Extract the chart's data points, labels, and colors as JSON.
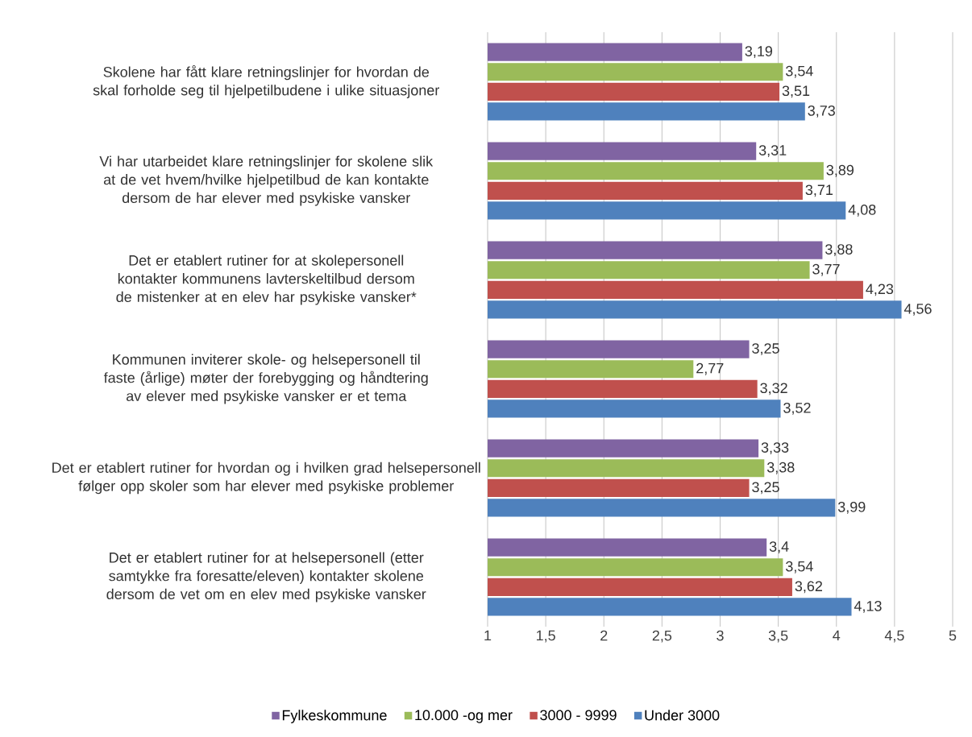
{
  "chart_data": {
    "type": "bar",
    "orientation": "horizontal",
    "categories": [
      "Skolene har fått klare retningslinjer for hvordan de skal forholde seg til hjelpetilbudene i ulike situasjoner",
      "Vi har utarbeidet klare retningslinjer for skolene slik at de vet hvem/hvilke hjelpetilbud de kan kontakte dersom de har elever med psykiske vansker",
      "Det er etablert rutiner for at skolepersonell kontakter kommunens lavterskeltilbud dersom de mistenker at en elev har psykiske vansker*",
      "Kommunen inviterer skole- og helsepersonell til faste (årlige) møter der forebygging og håndtering av elever med psykiske vansker er et tema",
      "Det er etablert rutiner for hvordan og i hvilken grad helsepersonell følger opp skoler som har elever med psykiske problemer",
      "Det er etablert rutiner for at helsepersonell (etter samtykke fra foresatte/eleven) kontakter skolene dersom de vet om en elev med psykiske vansker"
    ],
    "series": [
      {
        "name": "Fylkeskommune",
        "color": "#8064a2",
        "values": [
          3.19,
          3.31,
          3.88,
          3.25,
          3.33,
          3.4
        ],
        "value_labels": [
          "3,19",
          "3,31",
          "3,88",
          "3,25",
          "3,33",
          "3,4"
        ]
      },
      {
        "name": "10.000 -og mer",
        "color": "#9bbb59",
        "values": [
          3.54,
          3.89,
          3.77,
          2.77,
          3.38,
          3.54
        ],
        "value_labels": [
          "3,54",
          "3,89",
          "3,77",
          "2,77",
          "3,38",
          "3,54"
        ]
      },
      {
        "name": "3000 - 9999",
        "color": "#c0504d",
        "values": [
          3.51,
          3.71,
          4.23,
          3.32,
          3.25,
          3.62
        ],
        "value_labels": [
          "3,51",
          "3,71",
          "4,23",
          "3,32",
          "3,25",
          "3,62"
        ]
      },
      {
        "name": "Under 3000",
        "color": "#4f81bd",
        "values": [
          3.73,
          4.08,
          4.56,
          3.52,
          3.99,
          4.13
        ],
        "value_labels": [
          "3,73",
          "4,08",
          "4,56",
          "3,52",
          "3,99",
          "4,13"
        ]
      }
    ],
    "xlim": [
      1,
      5
    ],
    "xticks": [
      1,
      {
        "value": 1.5,
        "label": "1,5"
      },
      2,
      {
        "value": 2.5,
        "label": "2,5"
      },
      3,
      {
        "value": 3.5,
        "label": "3,5"
      },
      4,
      {
        "value": 4.5,
        "label": "4,5"
      },
      5
    ],
    "grid": "x",
    "legend": "bottom"
  }
}
